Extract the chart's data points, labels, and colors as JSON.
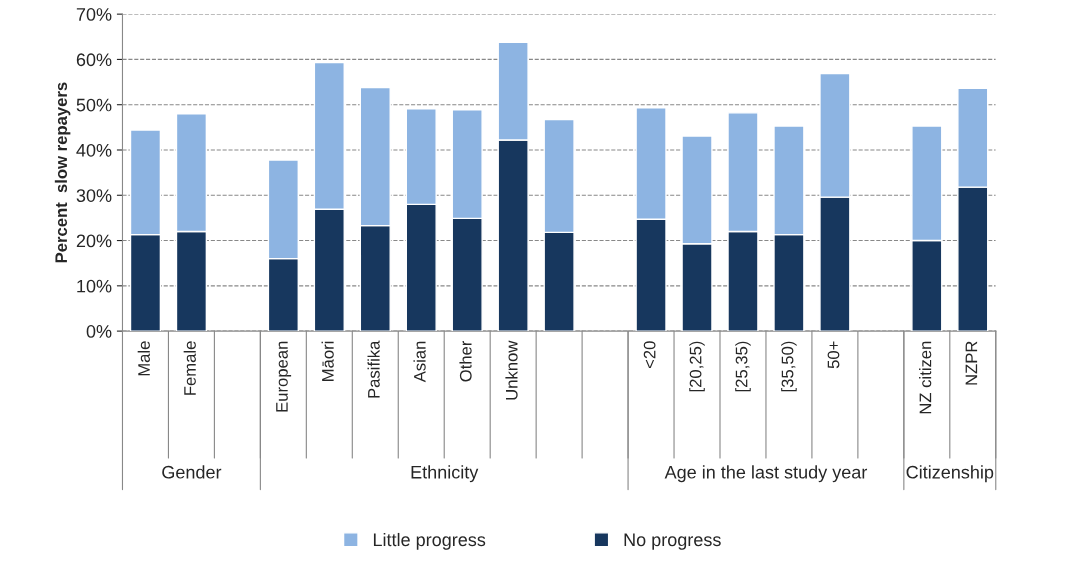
{
  "chart_data": {
    "type": "bar",
    "stacked": true,
    "ylabel": "Percent  slow repayers",
    "categories": [
      "Male",
      "Female",
      null,
      "European",
      "Māori",
      "Pasifika",
      "Asian",
      "Other",
      "Unknow",
      null,
      null,
      "<20",
      "[20,25)",
      "[25,35)",
      "[35,50)",
      "50+",
      null,
      "NZ citizen",
      "NZPR"
    ],
    "series": [
      {
        "name": "No progress",
        "color": "#17375e",
        "values": [
          21.3,
          22,
          null,
          16,
          26.9,
          23.3,
          28,
          24.9,
          42.2,
          21.8,
          null,
          24.7,
          19.3,
          22,
          21.3,
          29.6,
          null,
          20,
          31.8
        ]
      },
      {
        "name": "Little progress",
        "color": "#8db4e2",
        "values": [
          23.1,
          26,
          null,
          21.8,
          32.4,
          30.5,
          21.1,
          24,
          21.6,
          24.9,
          null,
          24.6,
          23.8,
          26.2,
          24,
          27.3,
          null,
          25.3,
          21.8
        ]
      }
    ],
    "ylim": [
      0,
      70
    ],
    "yticks": [
      {
        "value": 0,
        "label": "0%"
      },
      {
        "value": 10,
        "label": "10%"
      },
      {
        "value": 20,
        "label": "20%"
      },
      {
        "value": 30,
        "label": "30%"
      },
      {
        "value": 40,
        "label": "40%"
      },
      {
        "value": 50,
        "label": "50%"
      },
      {
        "value": 60,
        "label": "60%"
      },
      {
        "value": 70,
        "label": "70%"
      }
    ],
    "grid": "y",
    "legend": "bottom",
    "annotations": [
      "Gender",
      "Ethnicity",
      "Age in the last study year",
      "Citizenship"
    ]
  }
}
